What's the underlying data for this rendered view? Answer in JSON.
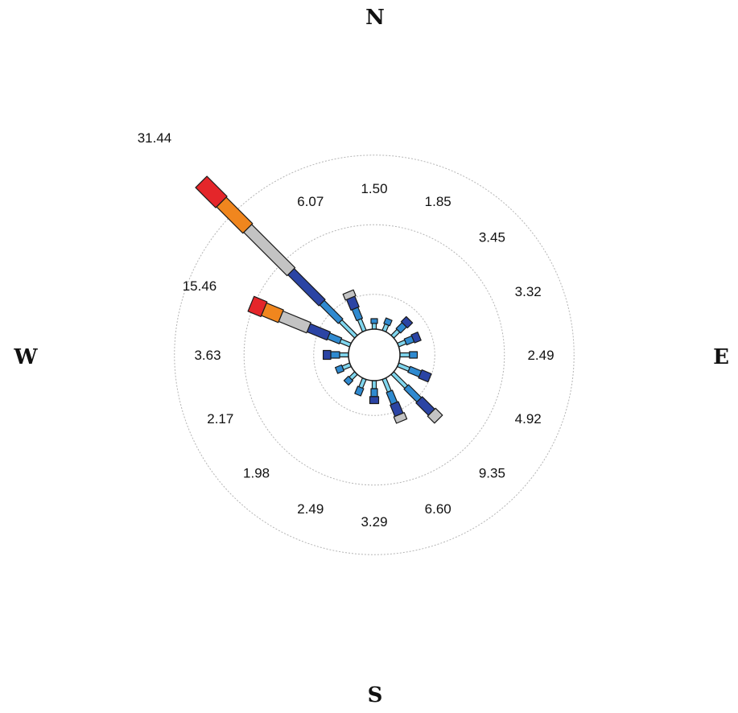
{
  "chart_data": {
    "type": "wind-rose",
    "title": "",
    "directions": [
      "N",
      "E",
      "S",
      "W"
    ],
    "sectors": [
      {
        "angle_deg": 0,
        "percent": "1.50"
      },
      {
        "angle_deg": 22.5,
        "percent": "1.85"
      },
      {
        "angle_deg": 45,
        "percent": "3.45"
      },
      {
        "angle_deg": 67.5,
        "percent": "3.32"
      },
      {
        "angle_deg": 90,
        "percent": "2.49"
      },
      {
        "angle_deg": 112.5,
        "percent": "4.92"
      },
      {
        "angle_deg": 135,
        "percent": "9.35"
      },
      {
        "angle_deg": 157.5,
        "percent": "6.60"
      },
      {
        "angle_deg": 180,
        "percent": "3.29"
      },
      {
        "angle_deg": 202.5,
        "percent": "2.49"
      },
      {
        "angle_deg": 225,
        "percent": "1.98"
      },
      {
        "angle_deg": 247.5,
        "percent": "2.17"
      },
      {
        "angle_deg": 270,
        "percent": "3.63"
      },
      {
        "angle_deg": 292.5,
        "percent": "15.46"
      },
      {
        "angle_deg": 315,
        "percent": "31.44"
      },
      {
        "angle_deg": 337.5,
        "percent": "6.07"
      }
    ],
    "speed_classes": [
      {
        "color": "#7fd6ee"
      },
      {
        "color": "#2f8ad0"
      },
      {
        "color": "#2b44a4"
      },
      {
        "color": "#c3c3c3"
      },
      {
        "color": "#f0861e"
      },
      {
        "color": "#e4262a"
      }
    ],
    "ring_percents": [
      5,
      15,
      25
    ],
    "calm_circle": true,
    "legend": "none"
  }
}
